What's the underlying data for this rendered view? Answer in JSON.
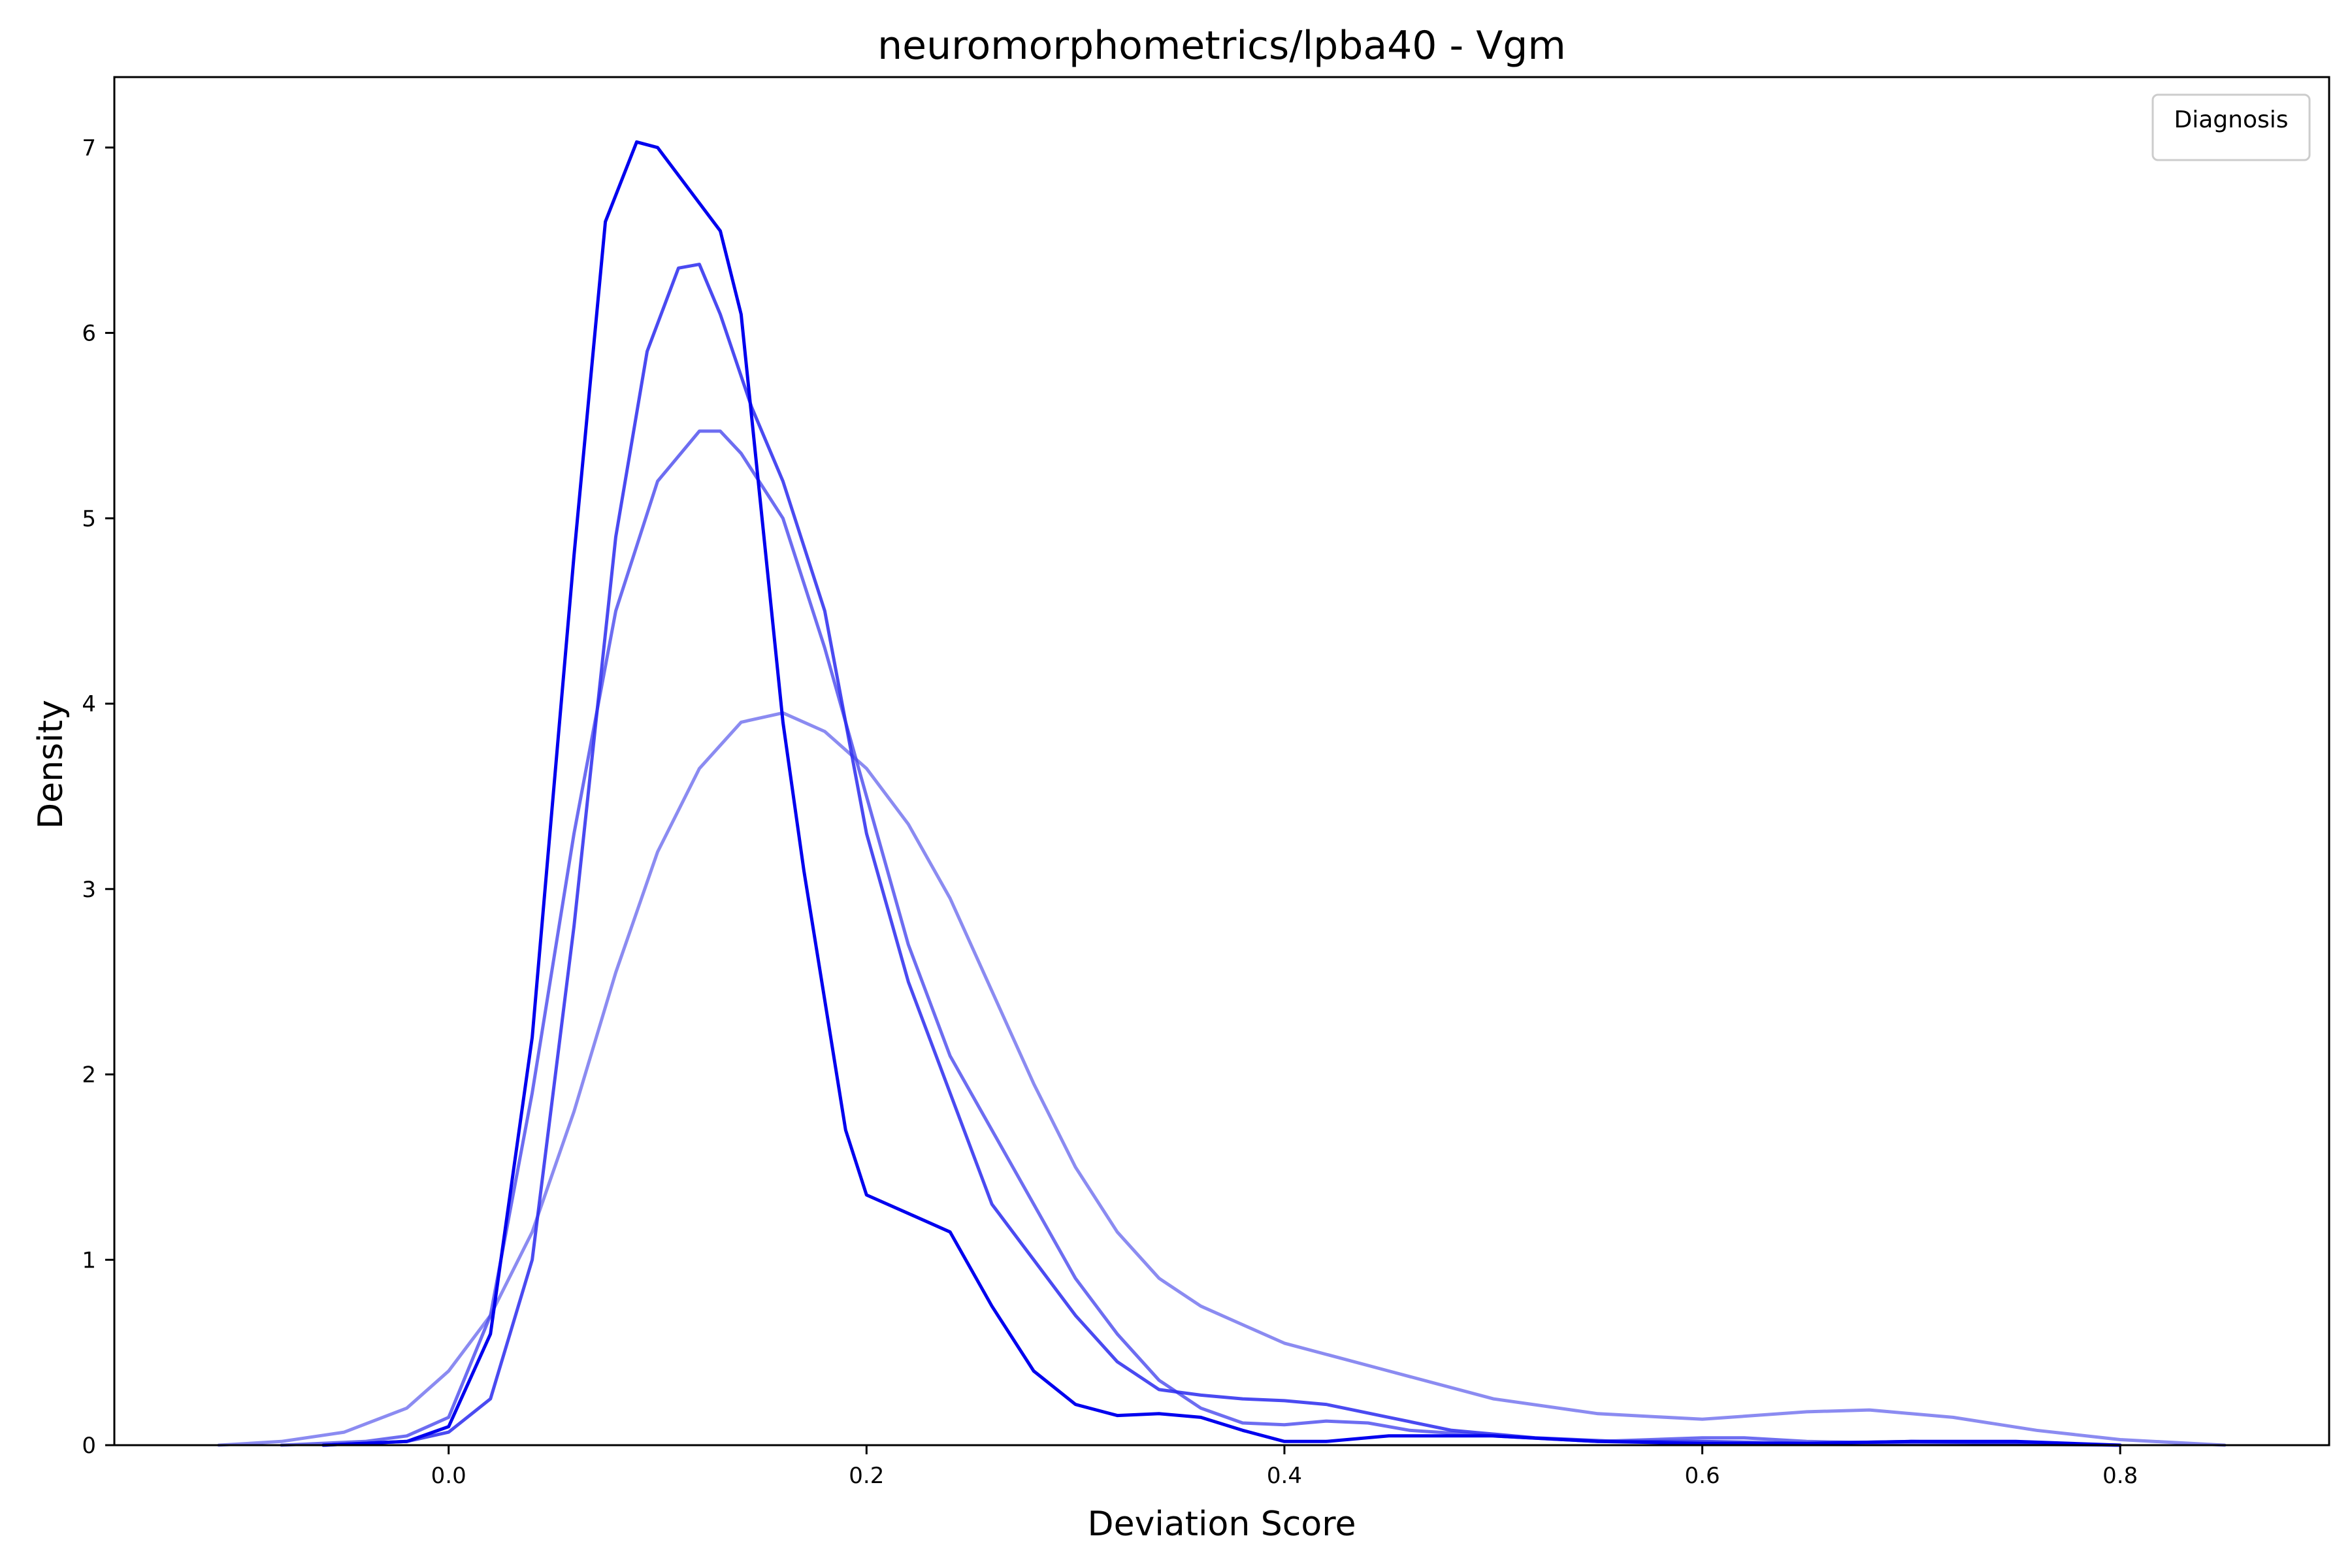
{
  "chart_data": {
    "type": "line",
    "title": "neuromorphometrics/lpba40 - Vgm",
    "xlabel": "Deviation Score",
    "ylabel": "Density",
    "xlim": [
      -0.16,
      0.9
    ],
    "ylim": [
      0,
      7.38
    ],
    "xticks": [
      0.0,
      0.2,
      0.4,
      0.6,
      0.8
    ],
    "xtick_labels": [
      "0.0",
      "0.2",
      "0.4",
      "0.6",
      "0.8"
    ],
    "yticks": [
      0,
      1,
      2,
      3,
      4,
      5,
      6,
      7
    ],
    "ytick_labels": [
      "0",
      "1",
      "2",
      "3",
      "4",
      "5",
      "6",
      "7"
    ],
    "grid": false,
    "legend": {
      "title": "Diagnosis",
      "position": "top-right",
      "entries": []
    },
    "series": [
      {
        "color": "#0000ee",
        "opacity": 1.0,
        "points": [
          [
            -0.06,
            0
          ],
          [
            -0.02,
            0.02
          ],
          [
            0.0,
            0.1
          ],
          [
            0.02,
            0.6
          ],
          [
            0.04,
            2.2
          ],
          [
            0.06,
            4.8
          ],
          [
            0.075,
            6.6
          ],
          [
            0.09,
            7.03
          ],
          [
            0.1,
            7.0
          ],
          [
            0.11,
            6.85
          ],
          [
            0.13,
            6.55
          ],
          [
            0.14,
            6.1
          ],
          [
            0.15,
            5.0
          ],
          [
            0.16,
            3.9
          ],
          [
            0.17,
            3.1
          ],
          [
            0.18,
            2.4
          ],
          [
            0.19,
            1.7
          ],
          [
            0.2,
            1.35
          ],
          [
            0.22,
            1.25
          ],
          [
            0.24,
            1.15
          ],
          [
            0.26,
            0.75
          ],
          [
            0.28,
            0.4
          ],
          [
            0.3,
            0.22
          ],
          [
            0.32,
            0.16
          ],
          [
            0.34,
            0.17
          ],
          [
            0.36,
            0.15
          ],
          [
            0.38,
            0.08
          ],
          [
            0.4,
            0.02
          ],
          [
            0.42,
            0.02
          ],
          [
            0.45,
            0.05
          ],
          [
            0.5,
            0.05
          ],
          [
            0.55,
            0.02
          ],
          [
            0.6,
            0.01
          ],
          [
            0.65,
            0.01
          ],
          [
            0.7,
            0.02
          ],
          [
            0.75,
            0.02
          ],
          [
            0.8,
            0.0
          ]
        ]
      },
      {
        "color": "#2a2aee",
        "opacity": 0.85,
        "points": [
          [
            -0.06,
            0
          ],
          [
            -0.02,
            0.02
          ],
          [
            0.0,
            0.07
          ],
          [
            0.02,
            0.25
          ],
          [
            0.04,
            1.0
          ],
          [
            0.06,
            2.8
          ],
          [
            0.08,
            4.9
          ],
          [
            0.095,
            5.9
          ],
          [
            0.11,
            6.35
          ],
          [
            0.12,
            6.37
          ],
          [
            0.13,
            6.1
          ],
          [
            0.145,
            5.6
          ],
          [
            0.16,
            5.2
          ],
          [
            0.18,
            4.5
          ],
          [
            0.2,
            3.3
          ],
          [
            0.22,
            2.5
          ],
          [
            0.24,
            1.9
          ],
          [
            0.26,
            1.3
          ],
          [
            0.28,
            1.0
          ],
          [
            0.3,
            0.7
          ],
          [
            0.32,
            0.45
          ],
          [
            0.34,
            0.3
          ],
          [
            0.36,
            0.27
          ],
          [
            0.38,
            0.25
          ],
          [
            0.4,
            0.24
          ],
          [
            0.42,
            0.22
          ],
          [
            0.45,
            0.15
          ],
          [
            0.48,
            0.08
          ],
          [
            0.52,
            0.04
          ],
          [
            0.56,
            0.02
          ],
          [
            0.6,
            0.02
          ],
          [
            0.65,
            0.01
          ],
          [
            0.7,
            0.02
          ],
          [
            0.75,
            0.01
          ],
          [
            0.8,
            0.0
          ]
        ]
      },
      {
        "color": "#4848ee",
        "opacity": 0.8,
        "points": [
          [
            -0.08,
            0
          ],
          [
            -0.04,
            0.02
          ],
          [
            -0.02,
            0.05
          ],
          [
            0.0,
            0.15
          ],
          [
            0.02,
            0.7
          ],
          [
            0.04,
            1.9
          ],
          [
            0.06,
            3.3
          ],
          [
            0.08,
            4.5
          ],
          [
            0.1,
            5.2
          ],
          [
            0.12,
            5.47
          ],
          [
            0.13,
            5.47
          ],
          [
            0.14,
            5.35
          ],
          [
            0.16,
            5.0
          ],
          [
            0.18,
            4.3
          ],
          [
            0.2,
            3.5
          ],
          [
            0.22,
            2.7
          ],
          [
            0.24,
            2.1
          ],
          [
            0.26,
            1.7
          ],
          [
            0.28,
            1.3
          ],
          [
            0.3,
            0.9
          ],
          [
            0.32,
            0.6
          ],
          [
            0.34,
            0.35
          ],
          [
            0.36,
            0.2
          ],
          [
            0.38,
            0.12
          ],
          [
            0.4,
            0.11
          ],
          [
            0.42,
            0.13
          ],
          [
            0.44,
            0.12
          ],
          [
            0.46,
            0.08
          ],
          [
            0.5,
            0.05
          ],
          [
            0.55,
            0.02
          ],
          [
            0.6,
            0.04
          ],
          [
            0.62,
            0.04
          ],
          [
            0.65,
            0.02
          ],
          [
            0.7,
            0.01
          ],
          [
            0.8,
            0.0
          ]
        ]
      },
      {
        "color": "#6e6eee",
        "opacity": 0.8,
        "points": [
          [
            -0.11,
            0
          ],
          [
            -0.08,
            0.02
          ],
          [
            -0.05,
            0.07
          ],
          [
            -0.02,
            0.2
          ],
          [
            0.0,
            0.4
          ],
          [
            0.02,
            0.7
          ],
          [
            0.04,
            1.15
          ],
          [
            0.06,
            1.8
          ],
          [
            0.08,
            2.55
          ],
          [
            0.1,
            3.2
          ],
          [
            0.12,
            3.65
          ],
          [
            0.14,
            3.9
          ],
          [
            0.16,
            3.95
          ],
          [
            0.18,
            3.85
          ],
          [
            0.2,
            3.65
          ],
          [
            0.22,
            3.35
          ],
          [
            0.24,
            2.95
          ],
          [
            0.26,
            2.45
          ],
          [
            0.28,
            1.95
          ],
          [
            0.3,
            1.5
          ],
          [
            0.32,
            1.15
          ],
          [
            0.34,
            0.9
          ],
          [
            0.36,
            0.75
          ],
          [
            0.38,
            0.65
          ],
          [
            0.4,
            0.55
          ],
          [
            0.45,
            0.4
          ],
          [
            0.5,
            0.25
          ],
          [
            0.55,
            0.17
          ],
          [
            0.6,
            0.14
          ],
          [
            0.65,
            0.18
          ],
          [
            0.68,
            0.19
          ],
          [
            0.72,
            0.15
          ],
          [
            0.76,
            0.08
          ],
          [
            0.8,
            0.03
          ],
          [
            0.85,
            0.0
          ]
        ]
      }
    ]
  }
}
